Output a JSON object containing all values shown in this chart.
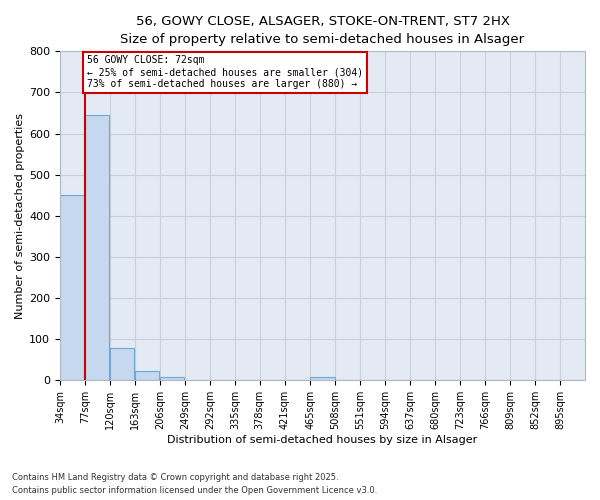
{
  "title_line1": "56, GOWY CLOSE, ALSAGER, STOKE-ON-TRENT, ST7 2HX",
  "title_line2": "Size of property relative to semi-detached houses in Alsager",
  "xlabel": "Distribution of semi-detached houses by size in Alsager",
  "ylabel": "Number of semi-detached properties",
  "categories": [
    "34sqm",
    "77sqm",
    "120sqm",
    "163sqm",
    "206sqm",
    "249sqm",
    "292sqm",
    "335sqm",
    "378sqm",
    "421sqm",
    "465sqm",
    "508sqm",
    "551sqm",
    "594sqm",
    "637sqm",
    "680sqm",
    "723sqm",
    "766sqm",
    "809sqm",
    "852sqm",
    "895sqm"
  ],
  "values": [
    450,
    645,
    78,
    22,
    8,
    0,
    0,
    0,
    0,
    0,
    8,
    0,
    0,
    0,
    0,
    0,
    0,
    0,
    0,
    0,
    0
  ],
  "bar_color": "#c5d8ef",
  "bar_edge_color": "#6aabd2",
  "grid_color": "#c8d0dc",
  "background_color": "#e4eaf3",
  "annotation_line1": "56 GOWY CLOSE: 72sqm",
  "annotation_line2": "← 25% of semi-detached houses are smaller (304)",
  "annotation_line3": "73% of semi-detached houses are larger (880) →",
  "vline_color": "#cc0000",
  "annotation_box_edge_color": "#cc0000",
  "ylim": [
    0,
    800
  ],
  "yticks": [
    0,
    100,
    200,
    300,
    400,
    500,
    600,
    700,
    800
  ],
  "footer_line1": "Contains HM Land Registry data © Crown copyright and database right 2025.",
  "footer_line2": "Contains public sector information licensed under the Open Government Licence v3.0."
}
